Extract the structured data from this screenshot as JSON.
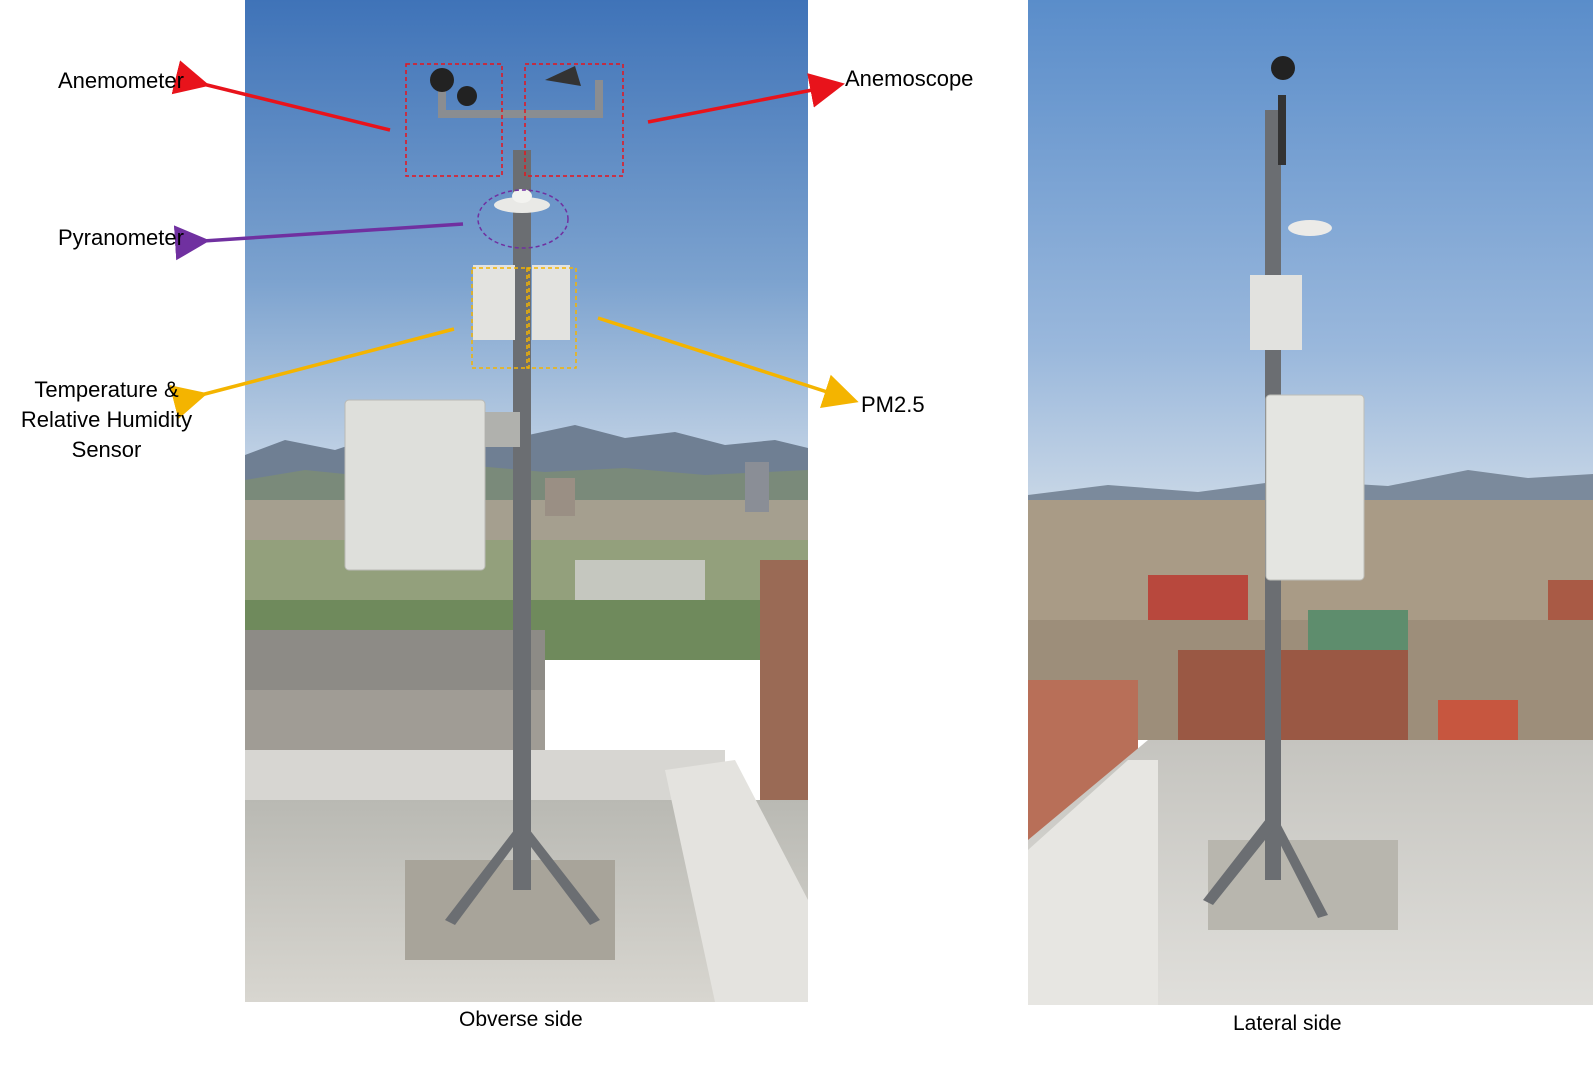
{
  "labels": {
    "anemometer": "Anemometer",
    "anemoscope": "Anemoscope",
    "pyranometer": "Pyranometer",
    "pm25": "PM2.5",
    "temp_line1": "Temperature &",
    "temp_line2": "Relative Humidity",
    "temp_line3": "Sensor"
  },
  "captions": {
    "obverse": "Obverse side",
    "lateral": "Lateral side"
  },
  "colors": {
    "anemometer_arrow": "#e8131b",
    "anemoscope_arrow": "#e8131b",
    "pyranometer_arrow": "#7030a0",
    "temp_arrow": "#f4b400",
    "pm25_arrow": "#f4b400",
    "sky_top": "#4d7fc0",
    "sky_bottom": "#b8cde4",
    "pole": "#6b6e72"
  }
}
